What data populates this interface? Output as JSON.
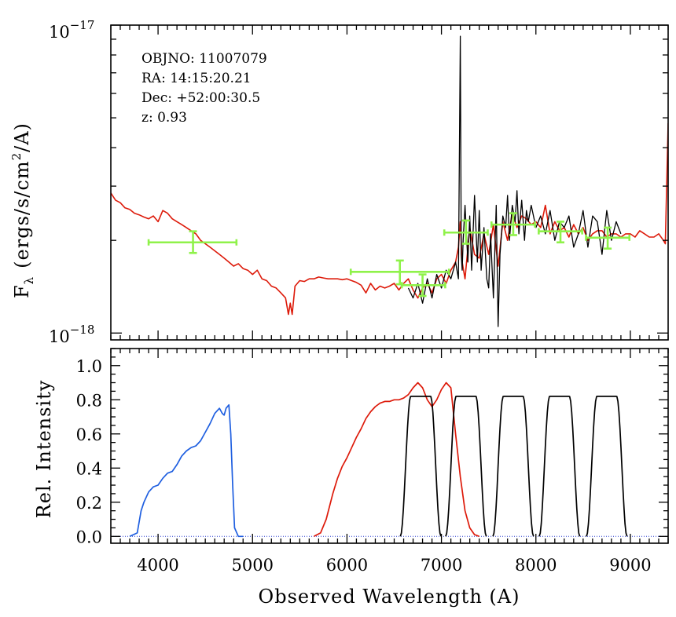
{
  "chart_data": [
    {
      "name": "spectrum",
      "type": "line",
      "xlabel": "Observed Wavelength (A)",
      "ylabel": "F_λ (ergs/s/cm²/A)",
      "ylabel_parts": {
        "base": "F",
        "sub": "λ",
        "pre": "(ergs/s/cm",
        "sup": "2",
        "post": "/A)"
      },
      "yscale": "log",
      "xlim": [
        3500,
        9400
      ],
      "ylim": [
        9.5e-19,
        1e-17
      ],
      "ytick_labels": [
        {
          "value": 1e-17,
          "base": "10",
          "exp": "−17"
        },
        {
          "value": 1e-18,
          "base": "10",
          "exp": "−18"
        }
      ],
      "annotations": [
        "OBJNO: 11007079",
        "RA: 14:15:20.21",
        "Dec: +52:00:30.5",
        "z: 0.93"
      ],
      "series": [
        {
          "name": "model spectrum",
          "color": "#dd1a0a",
          "x": [
            3500,
            3550,
            3600,
            3650,
            3700,
            3750,
            3800,
            3850,
            3900,
            3950,
            4000,
            4050,
            4100,
            4150,
            4200,
            4250,
            4300,
            4350,
            4400,
            4450,
            4500,
            4550,
            4600,
            4650,
            4700,
            4750,
            4800,
            4850,
            4900,
            4950,
            5000,
            5050,
            5100,
            5150,
            5200,
            5250,
            5300,
            5350,
            5380,
            5400,
            5420,
            5450,
            5500,
            5550,
            5600,
            5650,
            5700,
            5750,
            5800,
            5850,
            5900,
            5950,
            6000,
            6050,
            6100,
            6150,
            6200,
            6250,
            6300,
            6350,
            6400,
            6450,
            6500,
            6550,
            6600,
            6650,
            6700,
            6750,
            6800,
            6850,
            6900,
            6950,
            7000,
            7050,
            7100,
            7150,
            7180,
            7200,
            7220,
            7250,
            7300,
            7350,
            7400,
            7450,
            7500,
            7550,
            7600,
            7650,
            7700,
            7750,
            7800,
            7850,
            7900,
            7950,
            8000,
            8050,
            8100,
            8150,
            8200,
            8250,
            8300,
            8350,
            8400,
            8450,
            8500,
            8550,
            8600,
            8650,
            8700,
            8750,
            8800,
            8850,
            8900,
            8950,
            9000,
            9050,
            9100,
            9150,
            9200,
            9250,
            9300,
            9350,
            9370,
            9400
          ],
          "y": [
            2.85,
            2.7,
            2.65,
            2.55,
            2.52,
            2.45,
            2.42,
            2.38,
            2.35,
            2.4,
            2.3,
            2.5,
            2.45,
            2.35,
            2.3,
            2.25,
            2.2,
            2.15,
            2.1,
            2.0,
            1.95,
            1.9,
            1.85,
            1.8,
            1.75,
            1.7,
            1.65,
            1.68,
            1.62,
            1.6,
            1.55,
            1.6,
            1.5,
            1.48,
            1.42,
            1.4,
            1.35,
            1.3,
            1.15,
            1.25,
            1.15,
            1.42,
            1.48,
            1.47,
            1.5,
            1.5,
            1.52,
            1.51,
            1.5,
            1.5,
            1.5,
            1.49,
            1.5,
            1.48,
            1.46,
            1.43,
            1.35,
            1.45,
            1.38,
            1.42,
            1.4,
            1.42,
            1.45,
            1.38,
            1.45,
            1.5,
            1.38,
            1.3,
            1.4,
            1.45,
            1.35,
            1.5,
            1.55,
            1.45,
            1.6,
            1.7,
            1.9,
            2.3,
            1.7,
            1.5,
            2.2,
            1.8,
            1.75,
            2.1,
            1.8,
            2.25,
            1.65,
            2.3,
            2.0,
            2.45,
            2.2,
            2.4,
            2.35,
            2.25,
            2.3,
            2.2,
            2.6,
            2.1,
            2.3,
            2.15,
            2.2,
            2.05,
            2.25,
            2.1,
            2.2,
            2.0,
            2.1,
            2.15,
            2.15,
            2.05,
            2.1,
            2.1,
            2.05,
            2.1,
            2.1,
            2.05,
            2.15,
            2.1,
            2.05,
            2.05,
            2.1,
            2.0,
            1.95,
            4.8
          ]
        },
        {
          "name": "observed spectrum",
          "color": "#000000",
          "x": [
            6650,
            6700,
            6750,
            6800,
            6850,
            6900,
            6950,
            7000,
            7050,
            7100,
            7150,
            7180,
            7200,
            7210,
            7220,
            7230,
            7250,
            7280,
            7300,
            7320,
            7350,
            7380,
            7400,
            7420,
            7450,
            7480,
            7500,
            7520,
            7550,
            7580,
            7600,
            7620,
            7650,
            7680,
            7700,
            7720,
            7750,
            7780,
            7800,
            7820,
            7850,
            7880,
            7900,
            7920,
            7950,
            8000,
            8050,
            8100,
            8150,
            8200,
            8250,
            8300,
            8350,
            8400,
            8450,
            8500,
            8550,
            8600,
            8650,
            8700,
            8750,
            8800,
            8850,
            8900
          ],
          "y": [
            1.4,
            1.3,
            1.45,
            1.25,
            1.5,
            1.3,
            1.55,
            1.4,
            1.6,
            1.5,
            1.7,
            1.5,
            9.2,
            1.8,
            1.6,
            2.0,
            2.6,
            1.7,
            2.4,
            1.6,
            2.8,
            1.7,
            2.5,
            1.6,
            2.2,
            1.5,
            1.4,
            2.1,
            1.3,
            2.6,
            1.05,
            1.8,
            2.4,
            2.2,
            2.8,
            2.0,
            2.6,
            2.3,
            2.9,
            2.1,
            2.7,
            2.0,
            2.5,
            2.3,
            2.6,
            2.2,
            2.4,
            2.1,
            2.5,
            2.0,
            2.3,
            2.2,
            2.4,
            1.9,
            2.1,
            2.5,
            1.9,
            2.4,
            2.3,
            1.8,
            2.5,
            2.0,
            2.3,
            2.1
          ]
        }
      ],
      "photometry": {
        "color": "#8ff24a",
        "points": [
          {
            "x": 4370,
            "xmin": 3900,
            "xmax": 4830,
            "y": 1.97,
            "ylo": 1.82,
            "yhi": 2.14
          },
          {
            "x": 6560,
            "xmin": 6040,
            "xmax": 7080,
            "y": 1.58,
            "ylo": 1.44,
            "yhi": 1.72
          },
          {
            "x": 6800,
            "xmin": 6580,
            "xmax": 7040,
            "y": 1.43,
            "ylo": 1.32,
            "yhi": 1.55
          },
          {
            "x": 7260,
            "xmin": 7030,
            "xmax": 7490,
            "y": 2.12,
            "ylo": 1.95,
            "yhi": 2.32
          },
          {
            "x": 7760,
            "xmin": 7530,
            "xmax": 7990,
            "y": 2.25,
            "ylo": 2.08,
            "yhi": 2.45
          },
          {
            "x": 8260,
            "xmin": 8030,
            "xmax": 8490,
            "y": 2.14,
            "ylo": 1.97,
            "yhi": 2.3
          },
          {
            "x": 8760,
            "xmin": 8530,
            "xmax": 8990,
            "y": 2.04,
            "ylo": 1.88,
            "yhi": 2.2
          }
        ]
      }
    },
    {
      "name": "filter_curves",
      "type": "line",
      "xlabel": "Observed Wavelength (A)",
      "ylabel": "Rel. Intensity",
      "xlim": [
        3500,
        9400
      ],
      "ylim": [
        -0.04,
        1.1
      ],
      "xticks": [
        4000,
        5000,
        6000,
        7000,
        8000,
        9000
      ],
      "xtick_labels": [
        "4000",
        "5000",
        "6000",
        "7000",
        "8000",
        "9000"
      ],
      "yticks": [
        0.0,
        0.2,
        0.4,
        0.6,
        0.8,
        1.0
      ],
      "ytick_labels": [
        "0.0",
        "0.2",
        "0.4",
        "0.6",
        "0.8",
        "1.0"
      ],
      "series": [
        {
          "name": "blue filter",
          "color": "#1f5fe0",
          "x": [
            3700,
            3780,
            3820,
            3850,
            3900,
            3950,
            4000,
            4050,
            4100,
            4150,
            4200,
            4250,
            4300,
            4350,
            4400,
            4450,
            4500,
            4550,
            4600,
            4650,
            4680,
            4700,
            4720,
            4750,
            4770,
            4790,
            4810,
            4850,
            4900
          ],
          "y": [
            0,
            0.02,
            0.15,
            0.2,
            0.26,
            0.29,
            0.3,
            0.34,
            0.37,
            0.38,
            0.42,
            0.47,
            0.5,
            0.52,
            0.53,
            0.56,
            0.61,
            0.66,
            0.72,
            0.75,
            0.72,
            0.71,
            0.75,
            0.77,
            0.6,
            0.3,
            0.05,
            0,
            0
          ]
        },
        {
          "name": "red filter",
          "color": "#dd1a0a",
          "x": [
            5650,
            5720,
            5780,
            5850,
            5900,
            5950,
            6000,
            6050,
            6100,
            6150,
            6200,
            6250,
            6300,
            6350,
            6400,
            6450,
            6500,
            6550,
            6600,
            6650,
            6700,
            6750,
            6800,
            6850,
            6900,
            6950,
            7000,
            7050,
            7100,
            7150,
            7200,
            7250,
            7300,
            7350,
            7400
          ],
          "y": [
            0,
            0.02,
            0.1,
            0.25,
            0.34,
            0.41,
            0.46,
            0.52,
            0.58,
            0.63,
            0.69,
            0.73,
            0.76,
            0.78,
            0.79,
            0.79,
            0.8,
            0.8,
            0.81,
            0.83,
            0.87,
            0.9,
            0.87,
            0.8,
            0.76,
            0.8,
            0.86,
            0.9,
            0.87,
            0.6,
            0.35,
            0.15,
            0.05,
            0.01,
            0
          ]
        },
        {
          "name": "narrow filters",
          "color": "#000000",
          "centers": [
            6780,
            7260,
            7760,
            8250,
            8750
          ],
          "peak": 0.82,
          "width": 320
        }
      ]
    }
  ]
}
